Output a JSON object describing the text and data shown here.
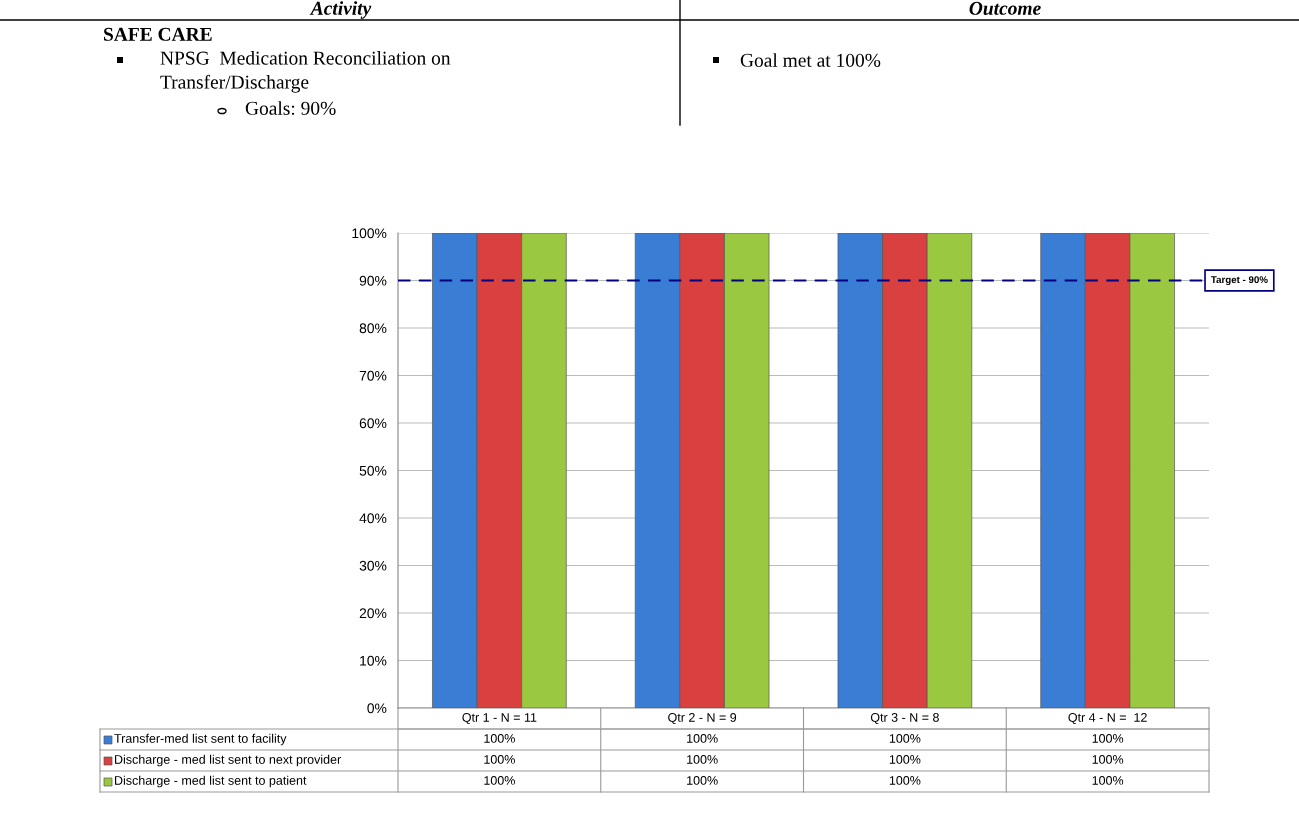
{
  "chart_data": {
    "type": "bar",
    "categories": [
      "Qtr 1 - N = 11",
      "Qtr 2 - N = 9",
      "Qtr 3 - N = 8",
      "Qtr 4 - N =  12"
    ],
    "series": [
      {
        "name": "Transfer-med list sent to facility",
        "color": "#3a7dd4",
        "values": [
          100,
          100,
          100,
          100
        ],
        "value_labels": [
          "100%",
          "100%",
          "100%",
          "100%"
        ]
      },
      {
        "name": "Discharge - med list sent to next provider",
        "color": "#d94040",
        "values": [
          100,
          100,
          100,
          100
        ],
        "value_labels": [
          "100%",
          "100%",
          "100%",
          "100%"
        ]
      },
      {
        "name": "Discharge - med list sent to patient",
        "color": "#9bc841",
        "values": [
          100,
          100,
          100,
          100
        ],
        "value_labels": [
          "100%",
          "100%",
          "100%",
          "100%"
        ]
      }
    ],
    "ylim": [
      0,
      100
    ],
    "yticks": [
      {
        "value": 0,
        "label": "0%"
      },
      {
        "value": 10,
        "label": "10%"
      },
      {
        "value": 20,
        "label": "20%"
      },
      {
        "value": 30,
        "label": "30%"
      },
      {
        "value": 40,
        "label": "40%"
      },
      {
        "value": 50,
        "label": "50%"
      },
      {
        "value": 60,
        "label": "60%"
      },
      {
        "value": 70,
        "label": "70%"
      },
      {
        "value": 80,
        "label": "80%"
      },
      {
        "value": 90,
        "label": "90%"
      },
      {
        "value": 100,
        "label": "100%"
      }
    ],
    "grid": "y",
    "legend": "bottom",
    "ref_lines": [
      {
        "axis": "y",
        "value": 90,
        "label": "Target - 90%",
        "color": "#000080",
        "line_style": "dashed"
      }
    ],
    "annotations": [
      "Activity",
      "Outcome",
      "SAFE CARE",
      "NPSG  Medication Reconciliation on\nTransfer/Discharge",
      "Goals: 90%",
      "Goal met at 100%"
    ]
  }
}
